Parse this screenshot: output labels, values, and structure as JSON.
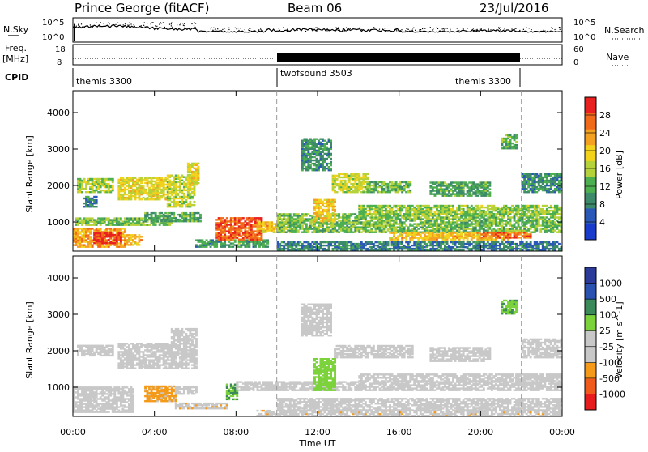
{
  "header": {
    "station": "Prince George (fitACF)",
    "beam": "Beam 06",
    "date": "23/Jul/2016"
  },
  "top_panels": {
    "nsky_label": "N.Sky",
    "nsky_ticks": [
      "10^5",
      "10^0"
    ],
    "nsearch_label": "N.Search",
    "nsearch_ticks": [
      "10^5",
      "10^0"
    ],
    "freq_label_1": "Freq.",
    "freq_label_2": "[MHz]",
    "freq_ticks": [
      "18",
      "8"
    ],
    "nave_label": "Nave",
    "nave_ticks": [
      "60",
      "0"
    ],
    "cpid_label": "CPID",
    "cpid_segments": [
      {
        "name": "themis 3300",
        "start_h": 0,
        "end_h": 10.0
      },
      {
        "name": "twofsound 3503",
        "start_h": 10.0,
        "end_h": 22.0
      },
      {
        "name": "themis 3300",
        "start_h": 22.0,
        "end_h": 24.0
      }
    ]
  },
  "colors": {
    "power_scale": [
      "#1a3ccc",
      "#2a58b8",
      "#3d8a6a",
      "#4caf50",
      "#b6d23a",
      "#f2d21a",
      "#f4a020",
      "#f06a1a",
      "#e82020"
    ],
    "velocity_scale": [
      "#e81c1c",
      "#f05a1a",
      "#f59a18",
      "#c8c8c8",
      "#c8c8c8",
      "#7cd23a",
      "#3a8a5a",
      "#2a52b0",
      "#2c3a9a"
    ]
  },
  "chart_data": [
    {
      "type": "heatmap",
      "panel": "power",
      "ylabel": "Slant Range [km]",
      "xlabel": "",
      "x_ticks": [
        "00:00",
        "04:00",
        "08:00",
        "12:00",
        "16:00",
        "20:00",
        "00:00"
      ],
      "y_ticks": [
        "1000",
        "2000",
        "3000",
        "4000"
      ],
      "xlim": [
        0,
        24
      ],
      "ylim": [
        200,
        4600
      ],
      "colorbar_label": "Power [dB]",
      "colorbar_ticks": [
        "28",
        "24",
        "20",
        "16",
        "12",
        "8",
        "4"
      ],
      "regions": [
        {
          "t0": 0.0,
          "t1": 2.6,
          "r0": 300,
          "r1": 800,
          "level": 6.0
        },
        {
          "t0": 1.0,
          "t1": 2.4,
          "r0": 400,
          "r1": 700,
          "level": 7.8
        },
        {
          "t0": 2.6,
          "t1": 3.4,
          "r0": 350,
          "r1": 650,
          "level": 5.5
        },
        {
          "t0": 0.2,
          "t1": 2.0,
          "r0": 1800,
          "r1": 2200,
          "level": 3.8
        },
        {
          "t0": 2.2,
          "t1": 4.6,
          "r0": 1600,
          "r1": 2200,
          "level": 4.6
        },
        {
          "t0": 4.6,
          "t1": 5.9,
          "r0": 1400,
          "r1": 2300,
          "level": 4.2
        },
        {
          "t0": 5.6,
          "t1": 6.1,
          "r0": 2000,
          "r1": 2600,
          "level": 4.8
        },
        {
          "t0": 0.1,
          "t1": 4.8,
          "r0": 900,
          "r1": 1100,
          "level": 3.4
        },
        {
          "t0": 3.5,
          "t1": 6.2,
          "r0": 1000,
          "r1": 1250,
          "level": 2.8
        },
        {
          "t0": 6.0,
          "t1": 9.5,
          "r0": 300,
          "r1": 500,
          "level": 2.5
        },
        {
          "t0": 7.0,
          "t1": 9.2,
          "r0": 500,
          "r1": 1100,
          "level": 7.2
        },
        {
          "t0": 9.0,
          "t1": 10.4,
          "r0": 700,
          "r1": 1000,
          "level": 5.5
        },
        {
          "t0": 10.0,
          "t1": 24.0,
          "r0": 700,
          "r1": 1200,
          "level": 3.3
        },
        {
          "t0": 14.0,
          "t1": 24.0,
          "r0": 1200,
          "r1": 1450,
          "level": 3.6
        },
        {
          "t0": 15.5,
          "t1": 21.5,
          "r0": 500,
          "r1": 700,
          "level": 5.5
        },
        {
          "t0": 20.0,
          "t1": 22.5,
          "r0": 550,
          "r1": 700,
          "level": 7.0
        },
        {
          "t0": 12.7,
          "t1": 14.4,
          "r0": 1800,
          "r1": 2300,
          "level": 4.4
        },
        {
          "t0": 14.4,
          "t1": 16.6,
          "r0": 1800,
          "r1": 2100,
          "level": 3.2
        },
        {
          "t0": 11.8,
          "t1": 12.8,
          "r0": 1000,
          "r1": 1600,
          "level": 5.2
        },
        {
          "t0": 10.0,
          "t1": 24.0,
          "r0": 200,
          "r1": 450,
          "level": 1.8
        },
        {
          "t0": 17.5,
          "t1": 20.5,
          "r0": 1700,
          "r1": 2100,
          "level": 2.6
        },
        {
          "t0": 11.2,
          "t1": 12.6,
          "r0": 2400,
          "r1": 3300,
          "level": 2.2
        },
        {
          "t0": 21.0,
          "t1": 21.8,
          "r0": 3000,
          "r1": 3400,
          "level": 3.0
        },
        {
          "t0": 22.0,
          "t1": 24.0,
          "r0": 1800,
          "r1": 2300,
          "level": 2.0
        },
        {
          "t0": 0.5,
          "t1": 1.2,
          "r0": 1400,
          "r1": 1700,
          "level": 1.6
        }
      ]
    },
    {
      "type": "heatmap",
      "panel": "velocity",
      "ylabel": "Slant Range [km]",
      "xlabel": "Time UT",
      "x_ticks": [
        "00:00",
        "04:00",
        "08:00",
        "12:00",
        "16:00",
        "20:00",
        "00:00"
      ],
      "y_ticks": [
        "1000",
        "2000",
        "3000",
        "4000"
      ],
      "xlim": [
        0,
        24
      ],
      "ylim": [
        200,
        4600
      ],
      "colorbar_label": "Velocity [m s^-1]",
      "colorbar_ticks": [
        "1000",
        "500",
        "100",
        "25",
        "-25",
        "-100",
        "-500",
        "-1000"
      ],
      "regions": [
        {
          "t0": 0.0,
          "t1": 3.0,
          "r0": 300,
          "r1": 1000,
          "level": 3.6
        },
        {
          "t0": 3.5,
          "t1": 5.0,
          "r0": 600,
          "r1": 1050,
          "level": 2.2
        },
        {
          "t0": 5.0,
          "t1": 6.0,
          "r0": 800,
          "r1": 1000,
          "level": 3.6
        },
        {
          "t0": 0.2,
          "t1": 2.0,
          "r0": 1850,
          "r1": 2150,
          "level": 3.6
        },
        {
          "t0": 2.2,
          "t1": 4.8,
          "r0": 1500,
          "r1": 2200,
          "level": 3.8
        },
        {
          "t0": 4.8,
          "t1": 6.0,
          "r0": 1500,
          "r1": 2600,
          "level": 3.7
        },
        {
          "t0": 5.0,
          "t1": 7.5,
          "r0": 400,
          "r1": 550,
          "level": 2.8
        },
        {
          "t0": 7.5,
          "t1": 8.0,
          "r0": 650,
          "r1": 1100,
          "level": 5.4
        },
        {
          "t0": 8.0,
          "t1": 24.0,
          "r0": 900,
          "r1": 1150,
          "level": 3.6
        },
        {
          "t0": 14.0,
          "t1": 24.0,
          "r0": 1150,
          "r1": 1350,
          "level": 3.5
        },
        {
          "t0": 12.8,
          "t1": 16.6,
          "r0": 1800,
          "r1": 2150,
          "level": 3.6
        },
        {
          "t0": 11.8,
          "t1": 12.8,
          "r0": 900,
          "r1": 1800,
          "level": 5.0
        },
        {
          "t0": 9.0,
          "t1": 24.0,
          "r0": 200,
          "r1": 350,
          "level": 2.9
        },
        {
          "t0": 10.0,
          "t1": 24.0,
          "r0": 350,
          "r1": 700,
          "level": 3.6
        },
        {
          "t0": 17.5,
          "t1": 20.5,
          "r0": 1700,
          "r1": 2100,
          "level": 3.6
        },
        {
          "t0": 11.2,
          "t1": 12.6,
          "r0": 2400,
          "r1": 3300,
          "level": 3.7
        },
        {
          "t0": 22.0,
          "t1": 24.0,
          "r0": 1800,
          "r1": 2300,
          "level": 3.6
        },
        {
          "t0": 21.0,
          "t1": 21.8,
          "r0": 3000,
          "r1": 3400,
          "level": 5.3
        }
      ]
    }
  ]
}
